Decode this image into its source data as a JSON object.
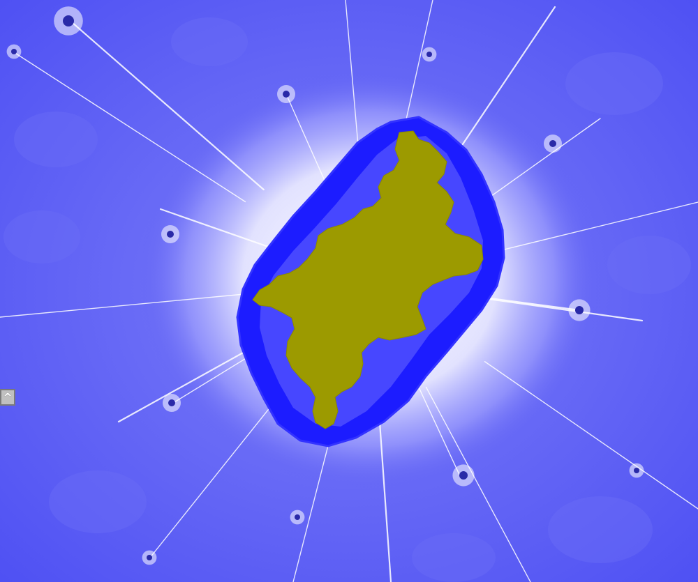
{
  "viewer": {
    "panel_toggle_label": "^",
    "panel_toggle_icon": "chevron-up-icon"
  },
  "palette": {
    "background": "#5a5cf5",
    "halo": "#ffffff",
    "boundary": "#1a1aff",
    "set_interior": "#9c9a00",
    "spoke": "#ffffff",
    "minibrot": "#2a2aa8"
  }
}
